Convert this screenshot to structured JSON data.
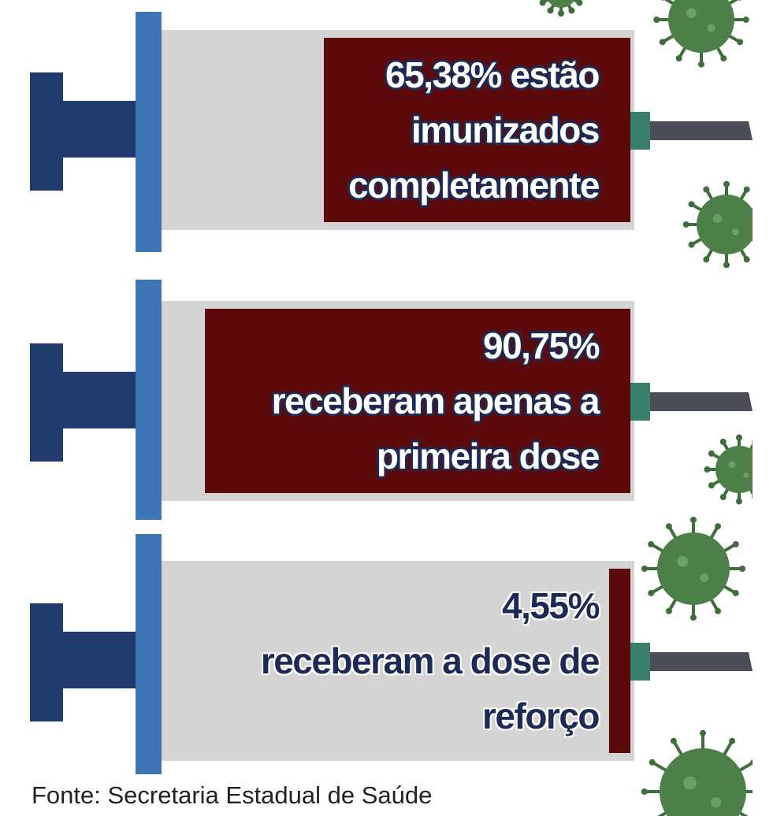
{
  "chart_data": {
    "type": "syringe",
    "value_labels": [
      "65,38%",
      "90,75%",
      "4,55%"
    ],
    "values": [
      65.38,
      90.75,
      4.55
    ],
    "labels": [
      "estão imunizados completamente",
      "receberam apenas a primeira dose",
      "receberam a dose de reforço"
    ],
    "xlim": [
      0,
      100
    ],
    "color": "#5c0a0c",
    "source": "Fonte: Secretaria Estadual de Saúde"
  }
}
